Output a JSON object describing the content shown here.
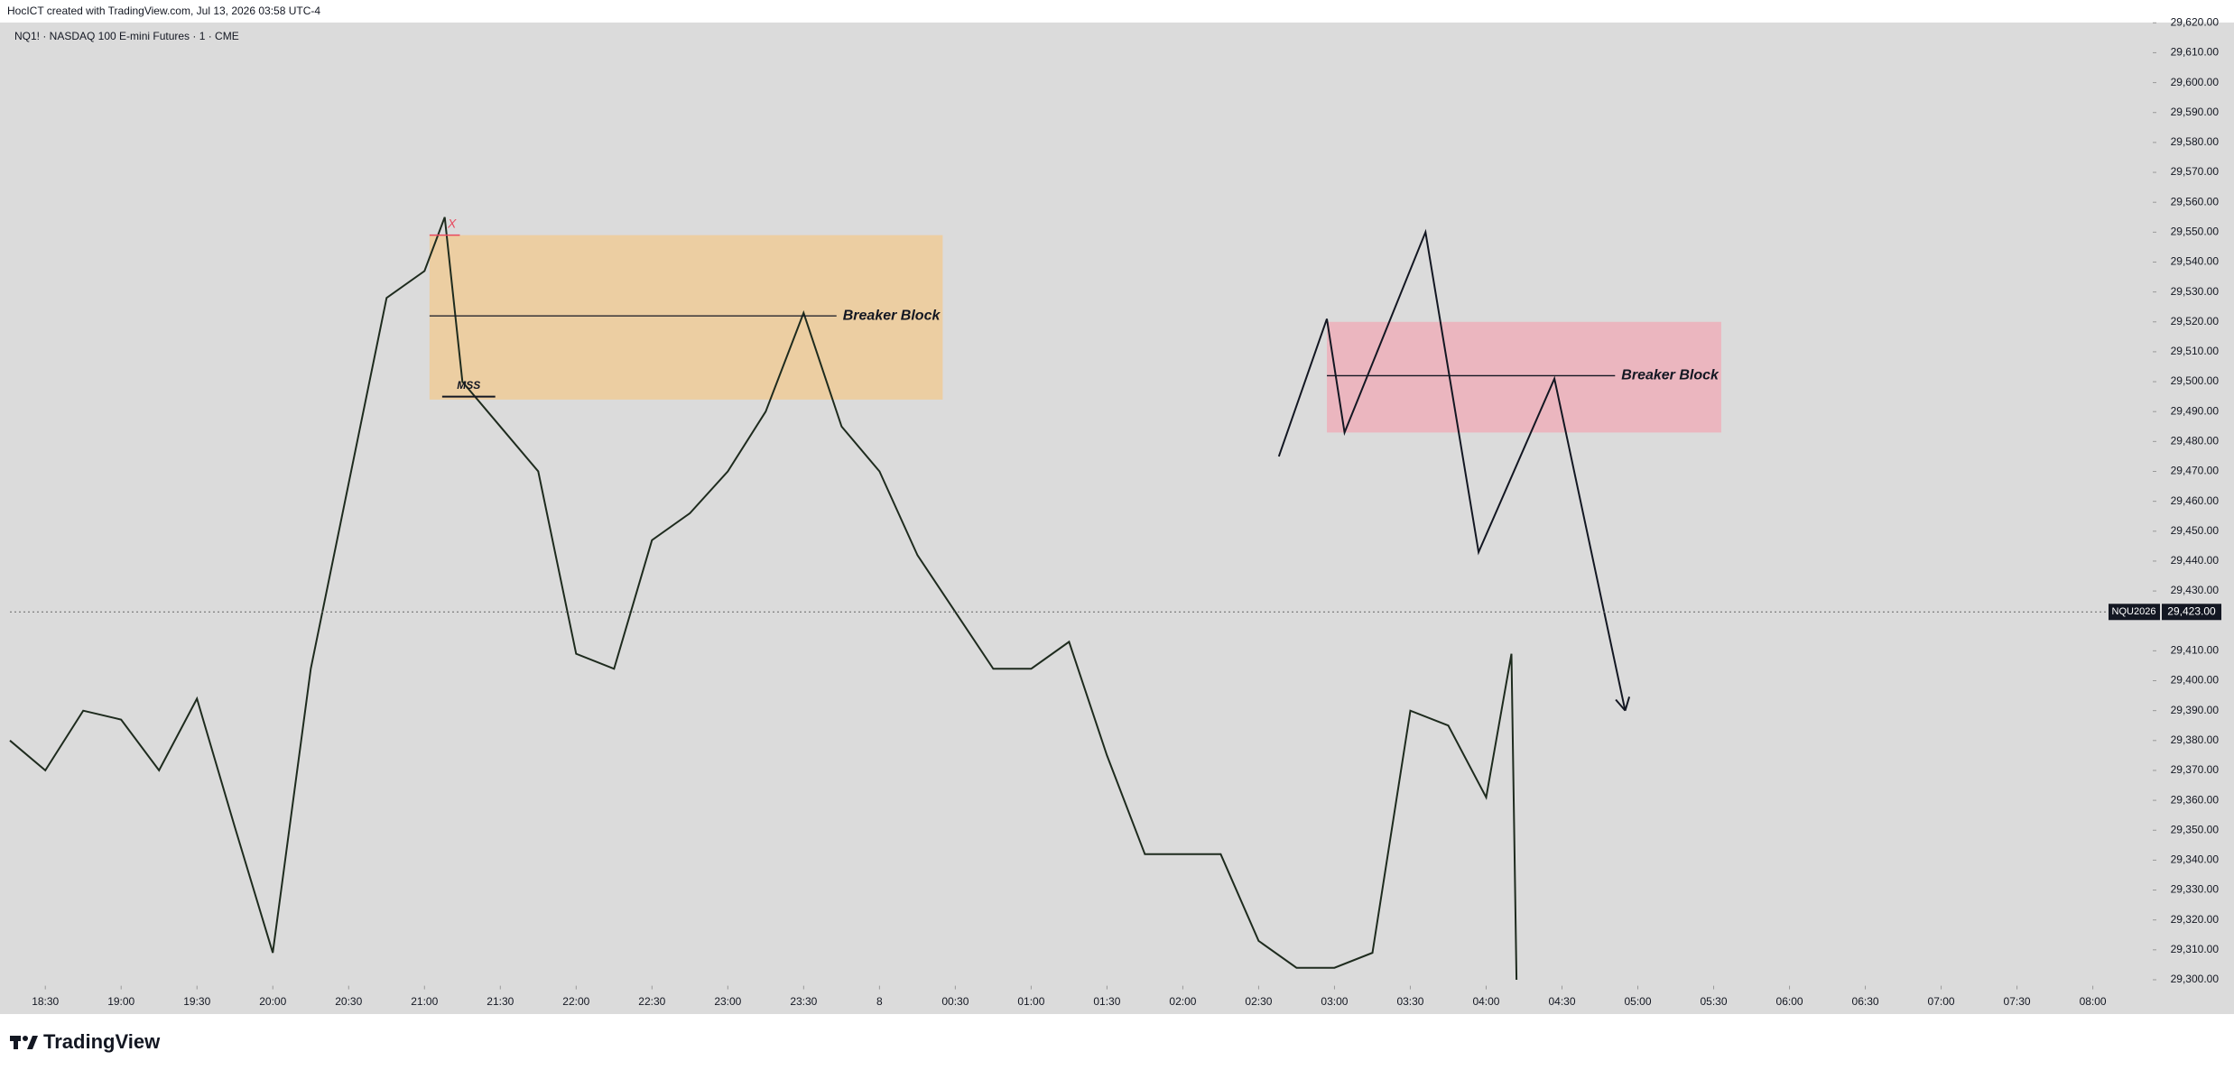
{
  "chart_data": {
    "type": "line",
    "subtitle": "HocICT created with TradingView.com, Jul 13, 2026 03:58 UTC-4",
    "title": "NQ1! · NASDAQ 100 E-mini Futures · 1 · CME",
    "brand": "TradingView",
    "xlim": [
      "18:16",
      "08:23"
    ],
    "ylim": [
      29298,
      29620
    ],
    "xticks": [
      "18:30",
      "19:00",
      "19:30",
      "20:00",
      "20:30",
      "21:00",
      "21:30",
      "22:00",
      "22:30",
      "23:00",
      "23:30",
      {
        "value": "00:00",
        "label": "8"
      },
      "00:30",
      "01:00",
      "01:30",
      "02:00",
      "02:30",
      "03:00",
      "03:30",
      "04:00",
      "04:30",
      "05:00",
      "05:30",
      "06:00",
      "06:30",
      "07:00",
      "07:30",
      "08:00"
    ],
    "yticks": [
      {
        "value": 29300,
        "label": "29,300.00"
      },
      {
        "value": 29310,
        "label": "29,310.00"
      },
      {
        "value": 29320,
        "label": "29,320.00"
      },
      {
        "value": 29330,
        "label": "29,330.00"
      },
      {
        "value": 29340,
        "label": "29,340.00"
      },
      {
        "value": 29350,
        "label": "29,350.00"
      },
      {
        "value": 29360,
        "label": "29,360.00"
      },
      {
        "value": 29370,
        "label": "29,370.00"
      },
      {
        "value": 29380,
        "label": "29,380.00"
      },
      {
        "value": 29390,
        "label": "29,390.00"
      },
      {
        "value": 29400,
        "label": "29,400.00"
      },
      {
        "value": 29410,
        "label": "29,410.00"
      },
      {
        "value": 29430,
        "label": "29,430.00"
      },
      {
        "value": 29440,
        "label": "29,440.00"
      },
      {
        "value": 29450,
        "label": "29,450.00"
      },
      {
        "value": 29460,
        "label": "29,460.00"
      },
      {
        "value": 29470,
        "label": "29,470.00"
      },
      {
        "value": 29480,
        "label": "29,480.00"
      },
      {
        "value": 29490,
        "label": "29,490.00"
      },
      {
        "value": 29500,
        "label": "29,500.00"
      },
      {
        "value": 29510,
        "label": "29,510.00"
      },
      {
        "value": 29520,
        "label": "29,520.00"
      },
      {
        "value": 29530,
        "label": "29,530.00"
      },
      {
        "value": 29540,
        "label": "29,540.00"
      },
      {
        "value": 29550,
        "label": "29,550.00"
      },
      {
        "value": 29560,
        "label": "29,560.00"
      },
      {
        "value": 29570,
        "label": "29,570.00"
      },
      {
        "value": 29580,
        "label": "29,580.00"
      },
      {
        "value": 29590,
        "label": "29,590.00"
      },
      {
        "value": 29600,
        "label": "29,600.00"
      },
      {
        "value": 29610,
        "label": "29,610.00"
      },
      {
        "value": 29620,
        "label": "29,620.00"
      }
    ],
    "series": [
      {
        "color": "#1e2b1e",
        "x": [
          "18:16",
          "18:30",
          "18:45",
          "19:00",
          "19:15",
          "19:30",
          "19:45",
          "20:00",
          "20:15",
          "20:30",
          "20:45",
          "21:00",
          "21:08",
          "21:15",
          "21:30",
          "21:45",
          "22:00",
          "22:15",
          "22:30",
          "22:45",
          "23:00",
          "23:15",
          "23:30",
          "23:45",
          "00:00",
          "00:15",
          "00:30",
          "00:45",
          "01:00",
          "01:15",
          "01:30",
          "01:45",
          "02:00",
          "02:15",
          "02:30",
          "02:45",
          "03:00",
          "03:15",
          "03:30",
          "03:45",
          "04:00",
          "04:10",
          "04:12"
        ],
        "values": [
          29380,
          29370,
          29390,
          29387,
          29370,
          29394,
          29351,
          29309,
          29404,
          29466,
          29528,
          29537,
          29555,
          29500,
          29485,
          29470,
          29409,
          29404,
          29447,
          29456,
          29470,
          29490,
          29523,
          29485,
          29470,
          29442,
          29423,
          29404,
          29404,
          29413,
          29375,
          29342,
          29342,
          29342,
          29313,
          29304,
          29304,
          29309,
          29390,
          29385,
          29361,
          29409,
          29300
        ]
      }
    ],
    "current_price": {
      "name": "NQU2026",
      "value": 29423,
      "value_label": "29,423.00"
    },
    "breaker_blocks": [
      {
        "label": "Breaker Block",
        "start": "21:02",
        "end": "00:25",
        "top": 29549,
        "bottom": 29494,
        "level": 29522,
        "level_end": "23:43",
        "color": "#f2c98f"
      },
      {
        "label": "Breaker Block",
        "start": "02:57",
        "end": "05:33",
        "top": 29520,
        "bottom": 29483,
        "level": 29502,
        "level_end": "04:51",
        "color": "#f0aab5"
      }
    ],
    "mss": {
      "label": "MSS",
      "start": "21:07",
      "end": "21:28",
      "value": 29495
    },
    "sweep": {
      "label": "X",
      "start": "21:02",
      "end": "21:14",
      "value": 29549,
      "color": "#e84a5f"
    },
    "projection": {
      "x": [
        "02:38",
        "02:57",
        "03:04",
        "03:36",
        "03:57",
        "04:27",
        "04:55"
      ],
      "values": [
        29475,
        29521,
        29483,
        29550,
        29443,
        29501,
        29390
      ]
    }
  }
}
